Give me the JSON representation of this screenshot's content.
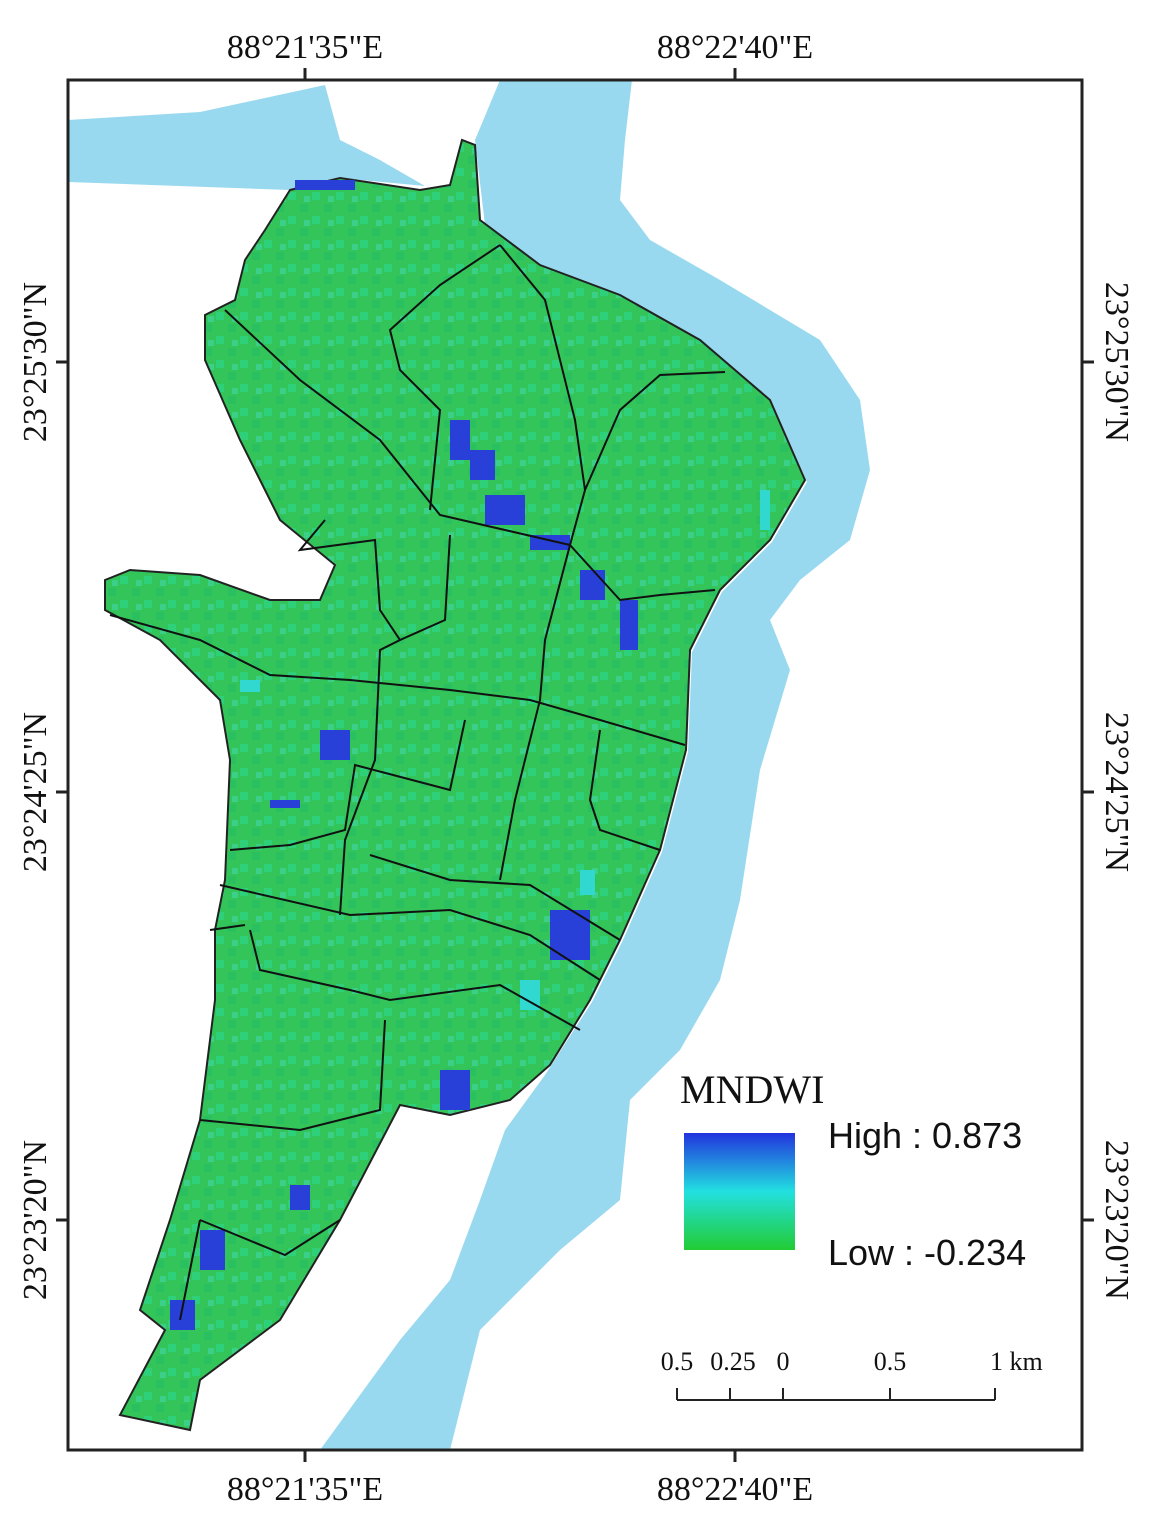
{
  "map": {
    "top_labels": [
      "88°21'35\"E",
      "88°22'40\"E"
    ],
    "bottom_labels": [
      "88°21'35\"E",
      "88°22'40\"E"
    ],
    "left_labels": [
      "23°25'30\"N",
      "23°24'25\"N",
      "23°23'20\"N"
    ],
    "right_labels": [
      "23°25'30\"N",
      "23°24'25\"N",
      "23°23'20\"N"
    ]
  },
  "legend": {
    "title": "MNDWI",
    "high": "High : 0.873",
    "low": "Low : -0.234"
  },
  "scale_bar": {
    "labels": [
      "0.5",
      "0.25",
      "0",
      "0.5",
      "1 km"
    ]
  }
}
